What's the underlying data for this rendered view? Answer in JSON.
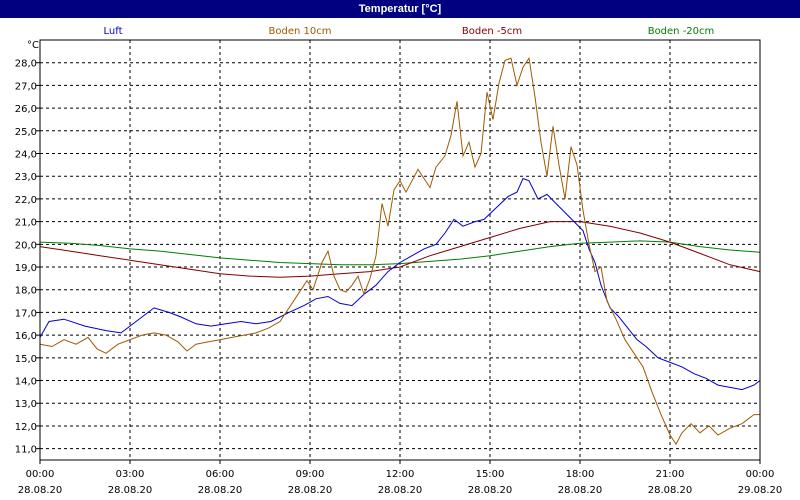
{
  "window": {
    "title": "Temperatur [°C]"
  },
  "chart_data": {
    "type": "line",
    "title": "Temperatur [°C]",
    "ylabel": "°C",
    "xlabel": "",
    "xlim": [
      0,
      24
    ],
    "ylim": [
      10.5,
      29.0
    ],
    "grid": true,
    "legend_placement": "top",
    "y_ticks": [
      "11,0",
      "12,0",
      "13,0",
      "14,0",
      "15,0",
      "16,0",
      "17,0",
      "18,0",
      "19,0",
      "20,0",
      "21,0",
      "22,0",
      "23,0",
      "24,0",
      "25,0",
      "26,0",
      "27,0",
      "28,0"
    ],
    "x_ticks": [
      {
        "time": "00:00",
        "date": "28.08.20"
      },
      {
        "time": "03:00",
        "date": "28.08.20"
      },
      {
        "time": "06:00",
        "date": "28.08.20"
      },
      {
        "time": "09:00",
        "date": "28.08.20"
      },
      {
        "time": "12:00",
        "date": "28.08.20"
      },
      {
        "time": "15:00",
        "date": "28.08.20"
      },
      {
        "time": "18:00",
        "date": "28.08.20"
      },
      {
        "time": "21:00",
        "date": "28.08.20"
      },
      {
        "time": "00:00",
        "date": "29.08.20"
      }
    ],
    "series": [
      {
        "name": "Luft",
        "color": "#0000cc",
        "points": [
          [
            0,
            15.9
          ],
          [
            0.3,
            16.6
          ],
          [
            0.8,
            16.7
          ],
          [
            1.5,
            16.4
          ],
          [
            2.2,
            16.2
          ],
          [
            2.7,
            16.1
          ],
          [
            3.2,
            16.6
          ],
          [
            3.8,
            17.2
          ],
          [
            4.3,
            17.0
          ],
          [
            4.7,
            16.8
          ],
          [
            5.2,
            16.5
          ],
          [
            5.7,
            16.4
          ],
          [
            6.2,
            16.5
          ],
          [
            6.7,
            16.6
          ],
          [
            7.2,
            16.5
          ],
          [
            7.7,
            16.6
          ],
          [
            8.3,
            17.0
          ],
          [
            8.8,
            17.3
          ],
          [
            9.2,
            17.6
          ],
          [
            9.6,
            17.7
          ],
          [
            10.0,
            17.4
          ],
          [
            10.4,
            17.3
          ],
          [
            10.8,
            17.8
          ],
          [
            11.2,
            18.2
          ],
          [
            11.6,
            18.8
          ],
          [
            12.0,
            19.2
          ],
          [
            12.4,
            19.5
          ],
          [
            12.8,
            19.8
          ],
          [
            13.2,
            20.0
          ],
          [
            13.5,
            20.5
          ],
          [
            13.8,
            21.1
          ],
          [
            14.1,
            20.8
          ],
          [
            14.5,
            21.0
          ],
          [
            14.8,
            21.1
          ],
          [
            15.2,
            21.6
          ],
          [
            15.6,
            22.1
          ],
          [
            15.9,
            22.3
          ],
          [
            16.1,
            22.9
          ],
          [
            16.3,
            22.8
          ],
          [
            16.6,
            22.0
          ],
          [
            16.9,
            22.2
          ],
          [
            17.2,
            21.8
          ],
          [
            17.5,
            21.4
          ],
          [
            17.8,
            21.0
          ],
          [
            18.1,
            20.6
          ],
          [
            18.3,
            19.8
          ],
          [
            18.5,
            19.2
          ],
          [
            18.7,
            18.2
          ],
          [
            19.0,
            17.2
          ],
          [
            19.3,
            16.8
          ],
          [
            19.6,
            16.3
          ],
          [
            19.9,
            15.8
          ],
          [
            20.2,
            15.5
          ],
          [
            20.6,
            15.0
          ],
          [
            21.0,
            14.8
          ],
          [
            21.4,
            14.6
          ],
          [
            21.8,
            14.3
          ],
          [
            22.2,
            14.1
          ],
          [
            22.6,
            13.8
          ],
          [
            23.0,
            13.7
          ],
          [
            23.4,
            13.6
          ],
          [
            23.8,
            13.8
          ],
          [
            24.0,
            14.0
          ]
        ]
      },
      {
        "name": "Boden 10cm",
        "color": "#a05a00",
        "points": [
          [
            0,
            15.6
          ],
          [
            0.4,
            15.5
          ],
          [
            0.8,
            15.8
          ],
          [
            1.2,
            15.6
          ],
          [
            1.6,
            15.9
          ],
          [
            1.9,
            15.4
          ],
          [
            2.2,
            15.2
          ],
          [
            2.6,
            15.6
          ],
          [
            3.0,
            15.8
          ],
          [
            3.4,
            16.0
          ],
          [
            3.8,
            16.1
          ],
          [
            4.2,
            16.0
          ],
          [
            4.6,
            15.7
          ],
          [
            4.9,
            15.3
          ],
          [
            5.2,
            15.6
          ],
          [
            5.6,
            15.7
          ],
          [
            6.0,
            15.8
          ],
          [
            6.4,
            15.9
          ],
          [
            6.8,
            16.0
          ],
          [
            7.2,
            16.1
          ],
          [
            7.6,
            16.3
          ],
          [
            8.0,
            16.6
          ],
          [
            8.3,
            17.2
          ],
          [
            8.6,
            17.8
          ],
          [
            8.9,
            18.4
          ],
          [
            9.1,
            18.0
          ],
          [
            9.4,
            19.2
          ],
          [
            9.6,
            19.7
          ],
          [
            9.8,
            18.6
          ],
          [
            10.0,
            18.0
          ],
          [
            10.2,
            17.9
          ],
          [
            10.4,
            18.2
          ],
          [
            10.6,
            18.6
          ],
          [
            10.8,
            17.8
          ],
          [
            11.0,
            18.5
          ],
          [
            11.2,
            19.5
          ],
          [
            11.4,
            21.8
          ],
          [
            11.6,
            20.8
          ],
          [
            11.8,
            22.4
          ],
          [
            12.0,
            22.8
          ],
          [
            12.2,
            22.3
          ],
          [
            12.4,
            22.8
          ],
          [
            12.6,
            23.3
          ],
          [
            12.8,
            22.9
          ],
          [
            13.0,
            22.5
          ],
          [
            13.2,
            23.4
          ],
          [
            13.5,
            23.9
          ],
          [
            13.7,
            24.8
          ],
          [
            13.9,
            26.3
          ],
          [
            14.1,
            23.9
          ],
          [
            14.3,
            24.5
          ],
          [
            14.5,
            23.4
          ],
          [
            14.7,
            24.0
          ],
          [
            14.9,
            26.7
          ],
          [
            15.1,
            25.5
          ],
          [
            15.3,
            27.1
          ],
          [
            15.5,
            28.1
          ],
          [
            15.7,
            28.2
          ],
          [
            15.9,
            27.0
          ],
          [
            16.1,
            27.8
          ],
          [
            16.3,
            28.2
          ],
          [
            16.5,
            26.5
          ],
          [
            16.7,
            24.5
          ],
          [
            16.9,
            23.0
          ],
          [
            17.1,
            25.2
          ],
          [
            17.3,
            23.5
          ],
          [
            17.5,
            22.0
          ],
          [
            17.7,
            24.3
          ],
          [
            17.9,
            23.5
          ],
          [
            18.1,
            21.5
          ],
          [
            18.3,
            20.0
          ],
          [
            18.5,
            18.8
          ],
          [
            18.7,
            19.0
          ],
          [
            18.9,
            17.5
          ],
          [
            19.2,
            16.7
          ],
          [
            19.5,
            15.8
          ],
          [
            19.8,
            15.2
          ],
          [
            20.1,
            14.6
          ],
          [
            20.4,
            13.5
          ],
          [
            20.7,
            12.5
          ],
          [
            21.0,
            11.6
          ],
          [
            21.2,
            11.2
          ],
          [
            21.4,
            11.7
          ],
          [
            21.7,
            12.1
          ],
          [
            22.0,
            11.7
          ],
          [
            22.3,
            12.0
          ],
          [
            22.6,
            11.6
          ],
          [
            23.0,
            11.9
          ],
          [
            23.4,
            12.1
          ],
          [
            23.8,
            12.5
          ],
          [
            24.0,
            12.5
          ]
        ]
      },
      {
        "name": "Boden -5cm",
        "color": "#800000",
        "points": [
          [
            0,
            19.9
          ],
          [
            1,
            19.7
          ],
          [
            2,
            19.5
          ],
          [
            3,
            19.3
          ],
          [
            4,
            19.1
          ],
          [
            5,
            18.9
          ],
          [
            6,
            18.7
          ],
          [
            7,
            18.6
          ],
          [
            8,
            18.55
          ],
          [
            9,
            18.6
          ],
          [
            10,
            18.7
          ],
          [
            11,
            18.8
          ],
          [
            12,
            19.0
          ],
          [
            13,
            19.5
          ],
          [
            14,
            19.9
          ],
          [
            15,
            20.3
          ],
          [
            16,
            20.7
          ],
          [
            17,
            21.0
          ],
          [
            18,
            21.0
          ],
          [
            19,
            20.8
          ],
          [
            20,
            20.5
          ],
          [
            21,
            20.1
          ],
          [
            22,
            19.6
          ],
          [
            23,
            19.1
          ],
          [
            24,
            18.8
          ]
        ]
      },
      {
        "name": "Boden -20cm",
        "color": "#008000",
        "points": [
          [
            0,
            20.1
          ],
          [
            1,
            20.05
          ],
          [
            2,
            19.95
          ],
          [
            3,
            19.8
          ],
          [
            4,
            19.7
          ],
          [
            5,
            19.55
          ],
          [
            6,
            19.4
          ],
          [
            7,
            19.3
          ],
          [
            8,
            19.2
          ],
          [
            9,
            19.15
          ],
          [
            10,
            19.1
          ],
          [
            11,
            19.1
          ],
          [
            12,
            19.15
          ],
          [
            13,
            19.25
          ],
          [
            14,
            19.35
          ],
          [
            15,
            19.5
          ],
          [
            16,
            19.7
          ],
          [
            17,
            19.9
          ],
          [
            18,
            20.05
          ],
          [
            19,
            20.1
          ],
          [
            20,
            20.15
          ],
          [
            21,
            20.1
          ],
          [
            22,
            19.9
          ],
          [
            23,
            19.75
          ],
          [
            24,
            19.65
          ]
        ]
      }
    ]
  }
}
